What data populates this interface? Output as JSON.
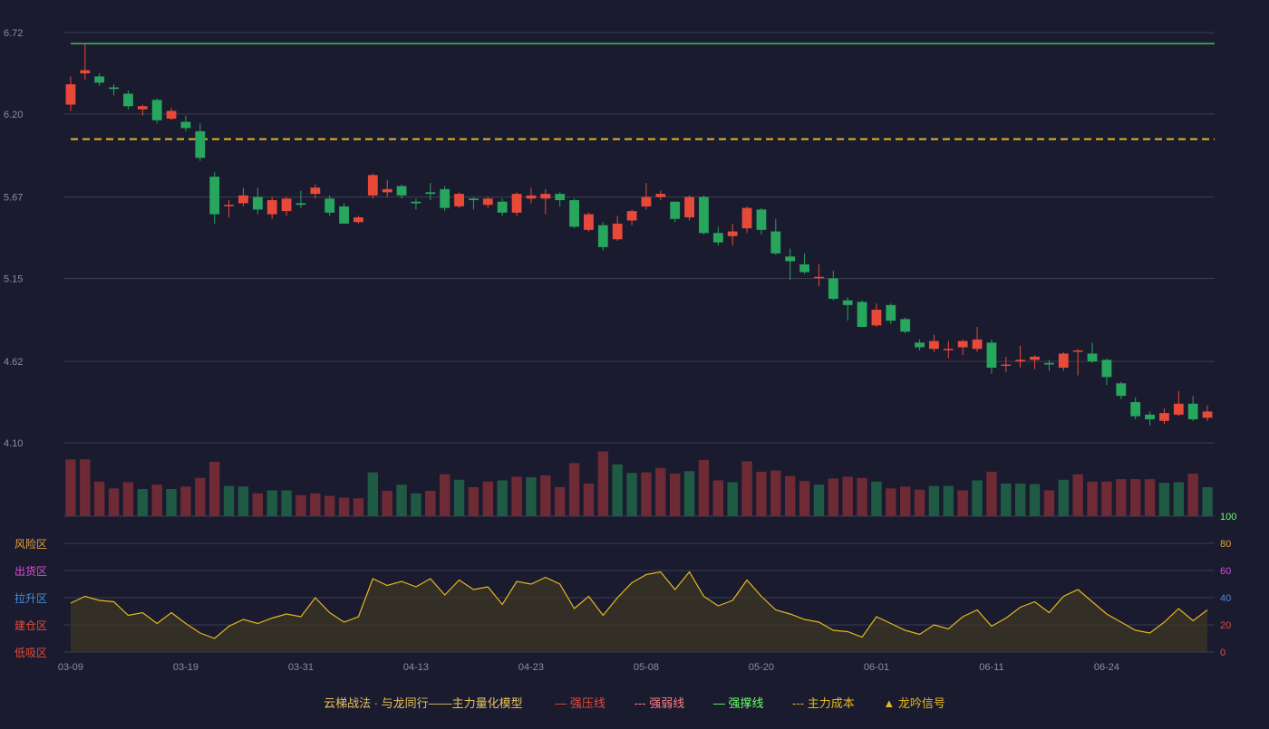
{
  "colors": {
    "background": "#1a1b2e",
    "grid": "#3a3c52",
    "up": "#e84a3a",
    "down": "#27a65e",
    "up_volume": "#6e2a35",
    "down_volume": "#1f5a45",
    "support_line": "#3fbf5a",
    "cost_line": "#e5b720",
    "oscillator_line": "#e5b720",
    "oscillator_fill": "#3b3524",
    "risk_zone": "#e5a23a",
    "distribution_zone": "#d84fd8",
    "rally_zone": "#4a8cd8",
    "build_zone": "#e84a3a",
    "accumulate_zone": "#e84a3a"
  },
  "chart_data": [
    {
      "type": "candlestick",
      "title": "",
      "yticks": [
        "6.72",
        "6.20",
        "5.67",
        "5.15",
        "4.62",
        "4.10"
      ],
      "ylim": [
        4.1,
        6.72
      ],
      "x_tick_labels": [
        "03-09",
        "03-19",
        "03-31",
        "04-13",
        "04-23",
        "05-08",
        "05-20",
        "06-01",
        "06-11",
        "06-24"
      ],
      "x_tick_indices": [
        0,
        8,
        16,
        24,
        32,
        40,
        48,
        56,
        64,
        72
      ],
      "support_level": 6.65,
      "cost_level": 6.04,
      "ohlc": [
        [
          6.26,
          6.39,
          6.22,
          6.44
        ],
        [
          6.46,
          6.48,
          6.42,
          6.65
        ],
        [
          6.44,
          6.4,
          6.38,
          6.46
        ],
        [
          6.37,
          6.36,
          6.32,
          6.39
        ],
        [
          6.33,
          6.25,
          6.23,
          6.35
        ],
        [
          6.23,
          6.25,
          6.19,
          6.26
        ],
        [
          6.29,
          6.16,
          6.14,
          6.3
        ],
        [
          6.17,
          6.22,
          6.16,
          6.24
        ],
        [
          6.15,
          6.11,
          6.09,
          6.19
        ],
        [
          6.09,
          5.92,
          5.9,
          6.14
        ],
        [
          5.8,
          5.56,
          5.5,
          5.83
        ],
        [
          5.62,
          5.62,
          5.54,
          5.65
        ],
        [
          5.63,
          5.68,
          5.61,
          5.73
        ],
        [
          5.67,
          5.59,
          5.56,
          5.73
        ],
        [
          5.56,
          5.65,
          5.53,
          5.67
        ],
        [
          5.58,
          5.66,
          5.55,
          5.67
        ],
        [
          5.63,
          5.62,
          5.6,
          5.71
        ],
        [
          5.69,
          5.73,
          5.66,
          5.75
        ],
        [
          5.66,
          5.57,
          5.55,
          5.68
        ],
        [
          5.61,
          5.5,
          5.5,
          5.63
        ],
        [
          5.51,
          5.54,
          5.5,
          5.55
        ],
        [
          5.68,
          5.81,
          5.66,
          5.82
        ],
        [
          5.7,
          5.72,
          5.67,
          5.78
        ],
        [
          5.74,
          5.68,
          5.66,
          5.75
        ],
        [
          5.64,
          5.63,
          5.59,
          5.66
        ],
        [
          5.7,
          5.69,
          5.65,
          5.76
        ],
        [
          5.72,
          5.6,
          5.58,
          5.74
        ],
        [
          5.61,
          5.69,
          5.6,
          5.7
        ],
        [
          5.66,
          5.65,
          5.59,
          5.67
        ],
        [
          5.62,
          5.66,
          5.6,
          5.67
        ],
        [
          5.64,
          5.57,
          5.55,
          5.66
        ],
        [
          5.57,
          5.69,
          5.55,
          5.7
        ],
        [
          5.66,
          5.68,
          5.63,
          5.73
        ],
        [
          5.66,
          5.69,
          5.56,
          5.72
        ],
        [
          5.69,
          5.65,
          5.61,
          5.7
        ],
        [
          5.65,
          5.48,
          5.47,
          5.66
        ],
        [
          5.46,
          5.56,
          5.45,
          5.57
        ],
        [
          5.49,
          5.35,
          5.33,
          5.51
        ],
        [
          5.4,
          5.5,
          5.39,
          5.55
        ],
        [
          5.52,
          5.58,
          5.49,
          5.59
        ],
        [
          5.61,
          5.67,
          5.59,
          5.76
        ],
        [
          5.67,
          5.69,
          5.65,
          5.71
        ],
        [
          5.64,
          5.53,
          5.51,
          5.64
        ],
        [
          5.54,
          5.67,
          5.52,
          5.68
        ],
        [
          5.67,
          5.44,
          5.43,
          5.68
        ],
        [
          5.44,
          5.38,
          5.36,
          5.48
        ],
        [
          5.42,
          5.45,
          5.36,
          5.5
        ],
        [
          5.47,
          5.6,
          5.44,
          5.61
        ],
        [
          5.59,
          5.46,
          5.43,
          5.6
        ],
        [
          5.45,
          5.31,
          5.3,
          5.53
        ],
        [
          5.29,
          5.26,
          5.14,
          5.34
        ],
        [
          5.24,
          5.19,
          5.18,
          5.31
        ],
        [
          5.16,
          5.16,
          5.1,
          5.24
        ],
        [
          5.15,
          5.02,
          5.01,
          5.2
        ],
        [
          5.01,
          4.98,
          4.88,
          5.03
        ],
        [
          5.0,
          4.84,
          4.84,
          5.01
        ],
        [
          4.85,
          4.95,
          4.84,
          4.99
        ],
        [
          4.98,
          4.88,
          4.86,
          4.99
        ],
        [
          4.89,
          4.81,
          4.8,
          4.9
        ],
        [
          4.74,
          4.71,
          4.69,
          4.76
        ],
        [
          4.7,
          4.75,
          4.68,
          4.79
        ],
        [
          4.7,
          4.7,
          4.64,
          4.75
        ],
        [
          4.71,
          4.75,
          4.66,
          4.76
        ],
        [
          4.7,
          4.76,
          4.68,
          4.84
        ],
        [
          4.74,
          4.58,
          4.54,
          4.76
        ],
        [
          4.6,
          4.6,
          4.55,
          4.65
        ],
        [
          4.62,
          4.63,
          4.58,
          4.72
        ],
        [
          4.63,
          4.65,
          4.57,
          4.66
        ],
        [
          4.61,
          4.6,
          4.56,
          4.63
        ],
        [
          4.58,
          4.67,
          4.56,
          4.68
        ],
        [
          4.69,
          4.69,
          4.53,
          4.7
        ],
        [
          4.67,
          4.62,
          4.61,
          4.74
        ],
        [
          4.63,
          4.52,
          4.47,
          4.64
        ],
        [
          4.48,
          4.4,
          4.38,
          4.49
        ],
        [
          4.36,
          4.27,
          4.25,
          4.39
        ],
        [
          4.28,
          4.25,
          4.21,
          4.3
        ],
        [
          4.24,
          4.29,
          4.22,
          4.32
        ],
        [
          4.28,
          4.35,
          4.27,
          4.43
        ],
        [
          4.35,
          4.25,
          4.24,
          4.4
        ],
        [
          4.26,
          4.3,
          4.24,
          4.34
        ]
      ]
    },
    {
      "type": "bar",
      "title": "",
      "values": [
        92,
        92,
        56,
        45,
        55,
        44,
        51,
        44,
        48,
        62,
        88,
        49,
        48,
        37,
        42,
        42,
        34,
        37,
        33,
        30,
        29,
        71,
        41,
        51,
        37,
        41,
        68,
        59,
        47,
        56,
        58,
        64,
        63,
        66,
        47,
        86,
        53,
        105,
        84,
        70,
        71,
        78,
        69,
        73,
        91,
        58,
        55,
        89,
        72,
        74,
        65,
        57,
        51,
        61,
        64,
        62,
        56,
        45,
        48,
        43,
        49,
        49,
        42,
        58,
        72,
        53,
        53,
        52,
        42,
        59,
        68,
        56,
        56,
        60,
        60,
        60,
        54,
        55,
        69,
        47
      ],
      "up": [
        true,
        true,
        true,
        true,
        true,
        false,
        true,
        false,
        true,
        true,
        true,
        false,
        false,
        true,
        false,
        false,
        true,
        true,
        true,
        true,
        true,
        false,
        true,
        false,
        false,
        true,
        true,
        false,
        true,
        true,
        false,
        true,
        false,
        true,
        true,
        true,
        true,
        true,
        false,
        false,
        true,
        true,
        true,
        false,
        true,
        true,
        false,
        true,
        true,
        true,
        true,
        true,
        false,
        true,
        true,
        true,
        false,
        true,
        true,
        true,
        false,
        false,
        true,
        false,
        true,
        false,
        false,
        false,
        true,
        false,
        true,
        true,
        true,
        true,
        true,
        true,
        false,
        false,
        true,
        false
      ]
    },
    {
      "type": "area",
      "title": "",
      "yticks": [
        0,
        20,
        40,
        60,
        80,
        100
      ],
      "ylim": [
        0,
        100
      ],
      "zones": [
        "风险区",
        "出货区",
        "拉升区",
        "建仓区",
        "低吸区"
      ],
      "values": [
        36,
        41,
        38,
        37,
        27,
        29,
        21,
        29,
        21,
        14,
        10,
        19,
        24,
        21,
        25,
        28,
        26,
        40,
        29,
        22,
        26,
        54,
        49,
        52,
        48,
        54,
        42,
        53,
        46,
        48,
        35,
        52,
        50,
        55,
        50,
        32,
        41,
        27,
        40,
        51,
        57,
        59,
        46,
        59,
        41,
        34,
        38,
        53,
        41,
        31,
        28,
        24,
        22,
        16,
        15,
        11,
        26,
        21,
        16,
        13,
        20,
        17,
        26,
        31,
        19,
        25,
        33,
        37,
        29,
        41,
        46,
        37,
        28,
        22,
        16,
        14,
        22,
        32,
        23,
        31
      ]
    }
  ],
  "legend": {
    "title": "云梯战法 · 与龙同行——主力量化模型",
    "items": [
      {
        "symbol": "—",
        "label": "强压线",
        "color": "#e84a3a"
      },
      {
        "symbol": "---",
        "label": "强弱线",
        "color": "#ff8080"
      },
      {
        "symbol": "—",
        "label": "强撑线",
        "color": "#6aff6a"
      },
      {
        "symbol": "---",
        "label": "主力成本",
        "color": "#e5b720"
      },
      {
        "symbol": "▲",
        "label": "龙吟信号",
        "color": "#e5b720"
      }
    ]
  }
}
